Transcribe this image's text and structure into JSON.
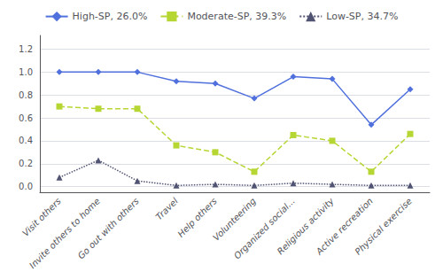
{
  "chart_data": {
    "type": "line",
    "categories": [
      "Visit others",
      "Invite others to home",
      "Go out with others",
      "Travel",
      "Help others",
      "Volunteering",
      "Organized social...",
      "Religious activity",
      "Active recreation",
      "Physical exercise"
    ],
    "series": [
      {
        "name": "High-SP, 26.0%",
        "values": [
          1.0,
          1.0,
          1.0,
          0.92,
          0.9,
          0.77,
          0.96,
          0.94,
          0.54,
          0.85
        ],
        "marker": "diamond",
        "line_style": "solid"
      },
      {
        "name": "Moderate-SP, 39.3%",
        "values": [
          0.7,
          0.68,
          0.68,
          0.36,
          0.3,
          0.13,
          0.45,
          0.4,
          0.13,
          0.46
        ],
        "marker": "square",
        "line_style": "dashed"
      },
      {
        "name": "Low-SP, 34.7%",
        "values": [
          0.08,
          0.23,
          0.05,
          0.01,
          0.02,
          0.01,
          0.03,
          0.02,
          0.01,
          0.01
        ],
        "marker": "triangle",
        "line_style": "dotted"
      }
    ],
    "ylim": [
      -0.05,
      1.32
    ],
    "yticks": [
      {
        "value": 0.0,
        "label": "0.0"
      },
      0.2,
      0.4,
      0.6,
      0.8,
      {
        "value": 1.0,
        "label": "1.0"
      },
      1.2
    ],
    "grid": true,
    "legend": "top"
  }
}
